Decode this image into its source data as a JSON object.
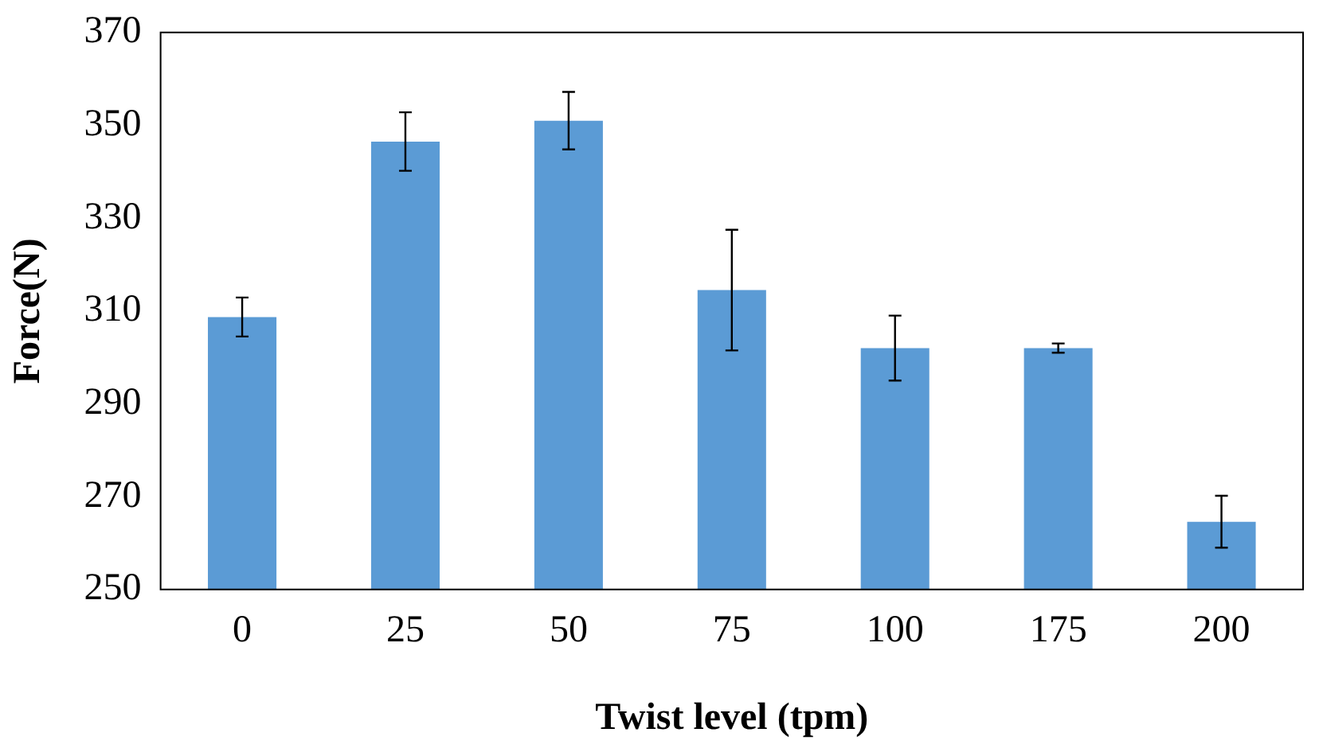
{
  "chart_data": {
    "type": "bar",
    "xlabel": "Twist level (tpm)",
    "ylabel": "Force(N)",
    "categories": [
      "0",
      "25",
      "50",
      "75",
      "100",
      "175",
      "200"
    ],
    "values": [
      308.7,
      346.5,
      351,
      314.5,
      302,
      302,
      264.6
    ],
    "errors": [
      4.2,
      6.3,
      6.2,
      13,
      7,
      1,
      5.6
    ],
    "color": "#5b9bd5",
    "ylim": [
      250,
      370
    ],
    "yticks": [
      250,
      270,
      290,
      310,
      330,
      350,
      370
    ],
    "grid": false,
    "legend": false
  }
}
